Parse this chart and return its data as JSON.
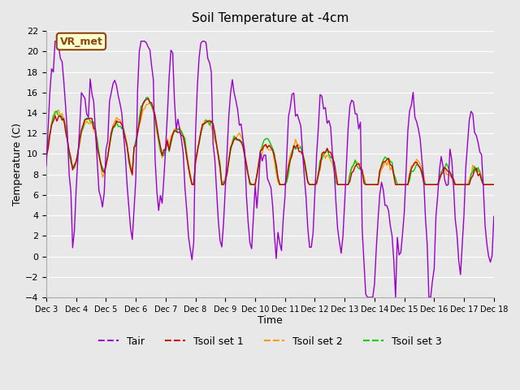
{
  "title": "Soil Temperature at -4cm",
  "xlabel": "Time",
  "ylabel": "Temperature (C)",
  "ylim": [
    -4,
    22
  ],
  "yticks": [
    -4,
    -2,
    0,
    2,
    4,
    6,
    8,
    10,
    12,
    14,
    16,
    18,
    20,
    22
  ],
  "bg_color": "#e8e8e8",
  "plot_bg_color": "#e8e8e8",
  "annotation_text": "VR_met",
  "annotation_bg": "#ffffcc",
  "annotation_border": "#8B4513",
  "line_colors": {
    "Tair": "#9900cc",
    "Tsoil1": "#cc0000",
    "Tsoil2": "#ff9900",
    "Tsoil3": "#00cc00"
  },
  "legend_labels": [
    "Tair",
    "Tsoil set 1",
    "Tsoil set 2",
    "Tsoil set 3"
  ],
  "x_tick_labels": [
    "Dec 3",
    "Dec 4",
    "Dec 5",
    "Dec 6",
    "Dec 7",
    "Dec 8",
    "Dec 9",
    "Dec 10",
    "Dec 11",
    "Dec 12",
    "Dec 13",
    "Dec 14",
    "Dec 15",
    "Dec 16",
    "Dec 17",
    "Dec 18"
  ],
  "n_points": 256
}
